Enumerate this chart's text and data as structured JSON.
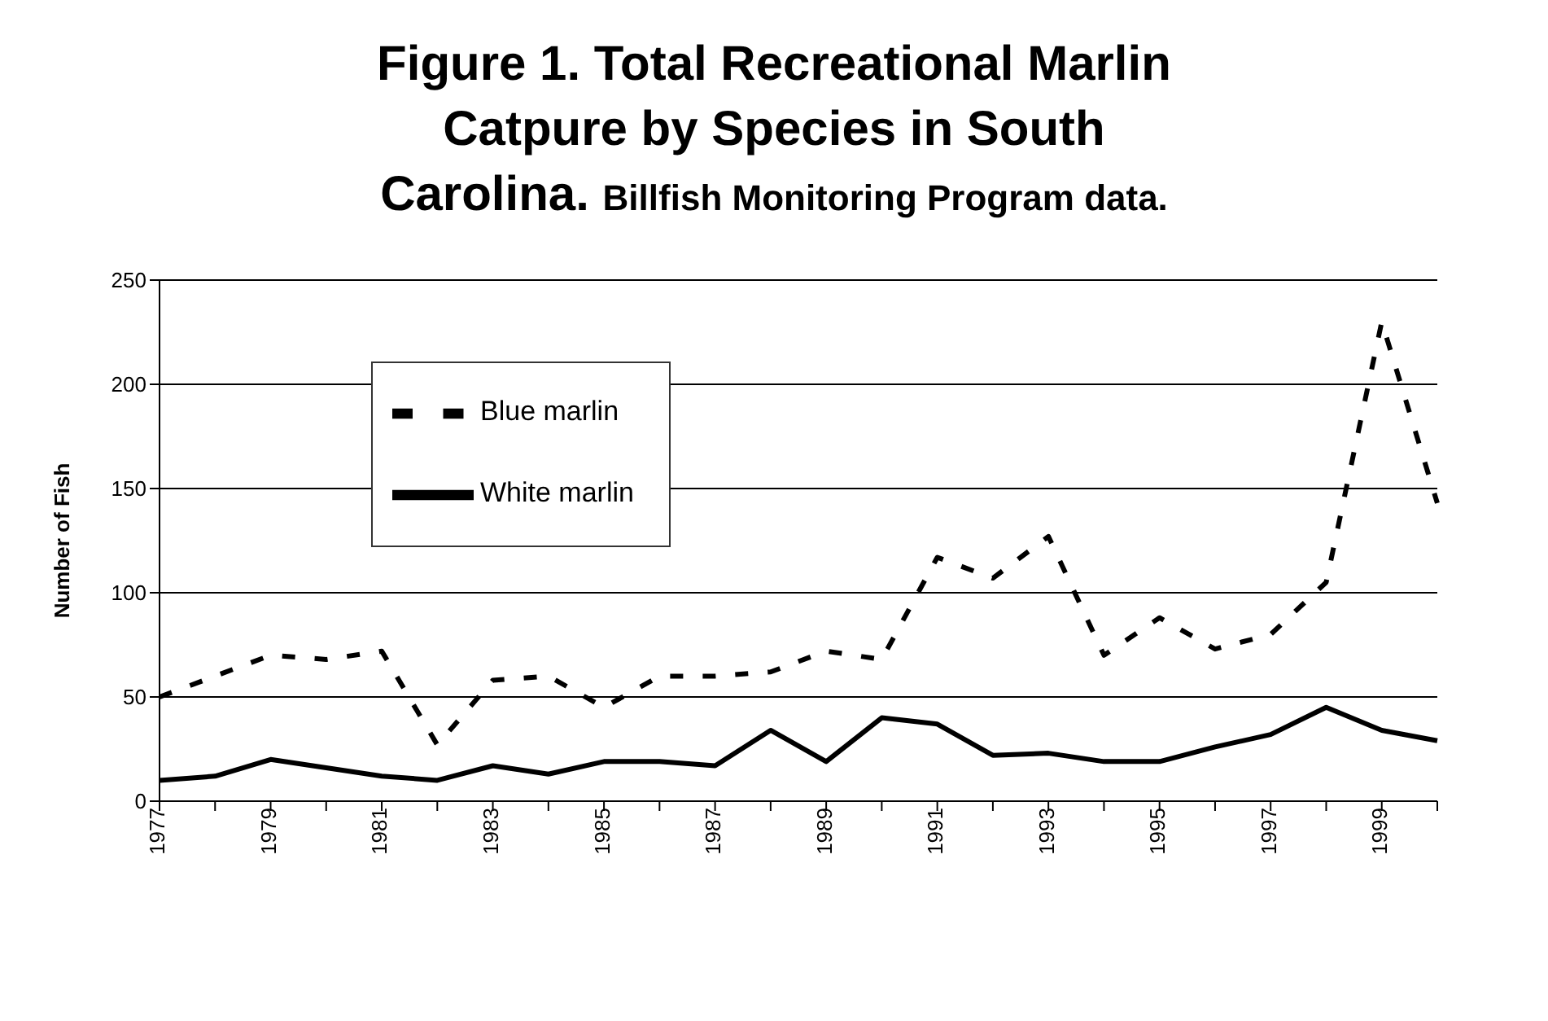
{
  "chart_data": {
    "type": "line",
    "title": "Figure 1. Total Recreational Marlin Catpure by Species in South Carolina.",
    "subtitle": "Billfish Monitoring Program data.",
    "ylabel": "Number of Fish",
    "categories": [
      "1977",
      null,
      "1979",
      null,
      "1981",
      null,
      "1983",
      null,
      "1985",
      null,
      "1987",
      null,
      "1989",
      null,
      "1991",
      null,
      "1993",
      null,
      "1995",
      null,
      "1997",
      null,
      "1999",
      null
    ],
    "series": [
      {
        "name": "Blue marlin",
        "color": "#000000",
        "line_style": "dashed",
        "values": [
          50,
          60,
          70,
          68,
          72,
          27,
          58,
          60,
          45,
          60,
          60,
          62,
          72,
          68,
          117,
          107,
          127,
          70,
          88,
          73,
          80,
          105,
          230,
          143
        ]
      },
      {
        "name": "White marlin",
        "color": "#000000",
        "line_style": "solid",
        "values": [
          10,
          12,
          20,
          16,
          12,
          10,
          17,
          13,
          19,
          19,
          17,
          34,
          19,
          40,
          37,
          22,
          23,
          19,
          19,
          26,
          32,
          45,
          34,
          29
        ]
      }
    ],
    "ylim": [
      0,
      250
    ],
    "yticks": [
      0,
      50,
      100,
      150,
      200,
      250
    ],
    "grid": "y",
    "legend": "left",
    "marker": "none"
  }
}
